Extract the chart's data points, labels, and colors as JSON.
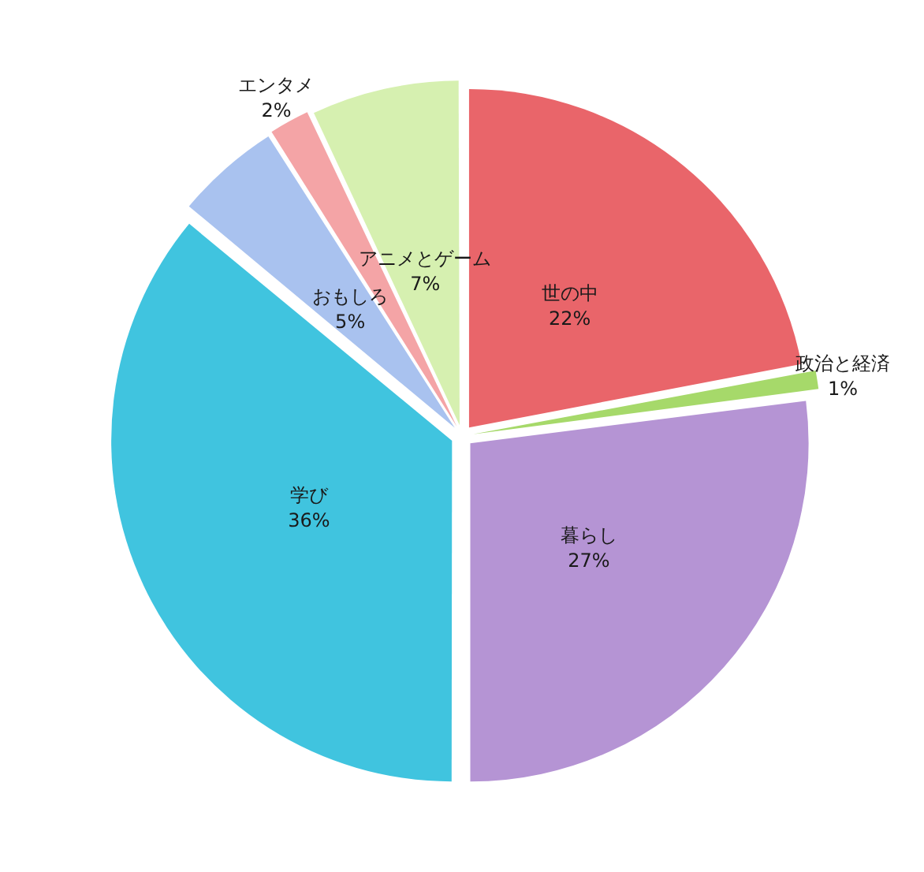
{
  "chart_data": {
    "type": "pie",
    "categories": [
      "世の中",
      "政治と経済",
      "暮らし",
      "学び",
      "おもしろ",
      "エンタメ",
      "アニメとゲーム"
    ],
    "values": [
      22,
      1,
      27,
      36,
      5,
      2,
      7
    ],
    "colors": [
      "#e9656a",
      "#a6d96a",
      "#b594d4",
      "#40c4df",
      "#a9c2ef",
      "#f4a4a6",
      "#d6f0b0"
    ],
    "value_labels": [
      "22%",
      "1%",
      "27%",
      "36%",
      "5%",
      "2%",
      "7%"
    ],
    "legend": false
  }
}
